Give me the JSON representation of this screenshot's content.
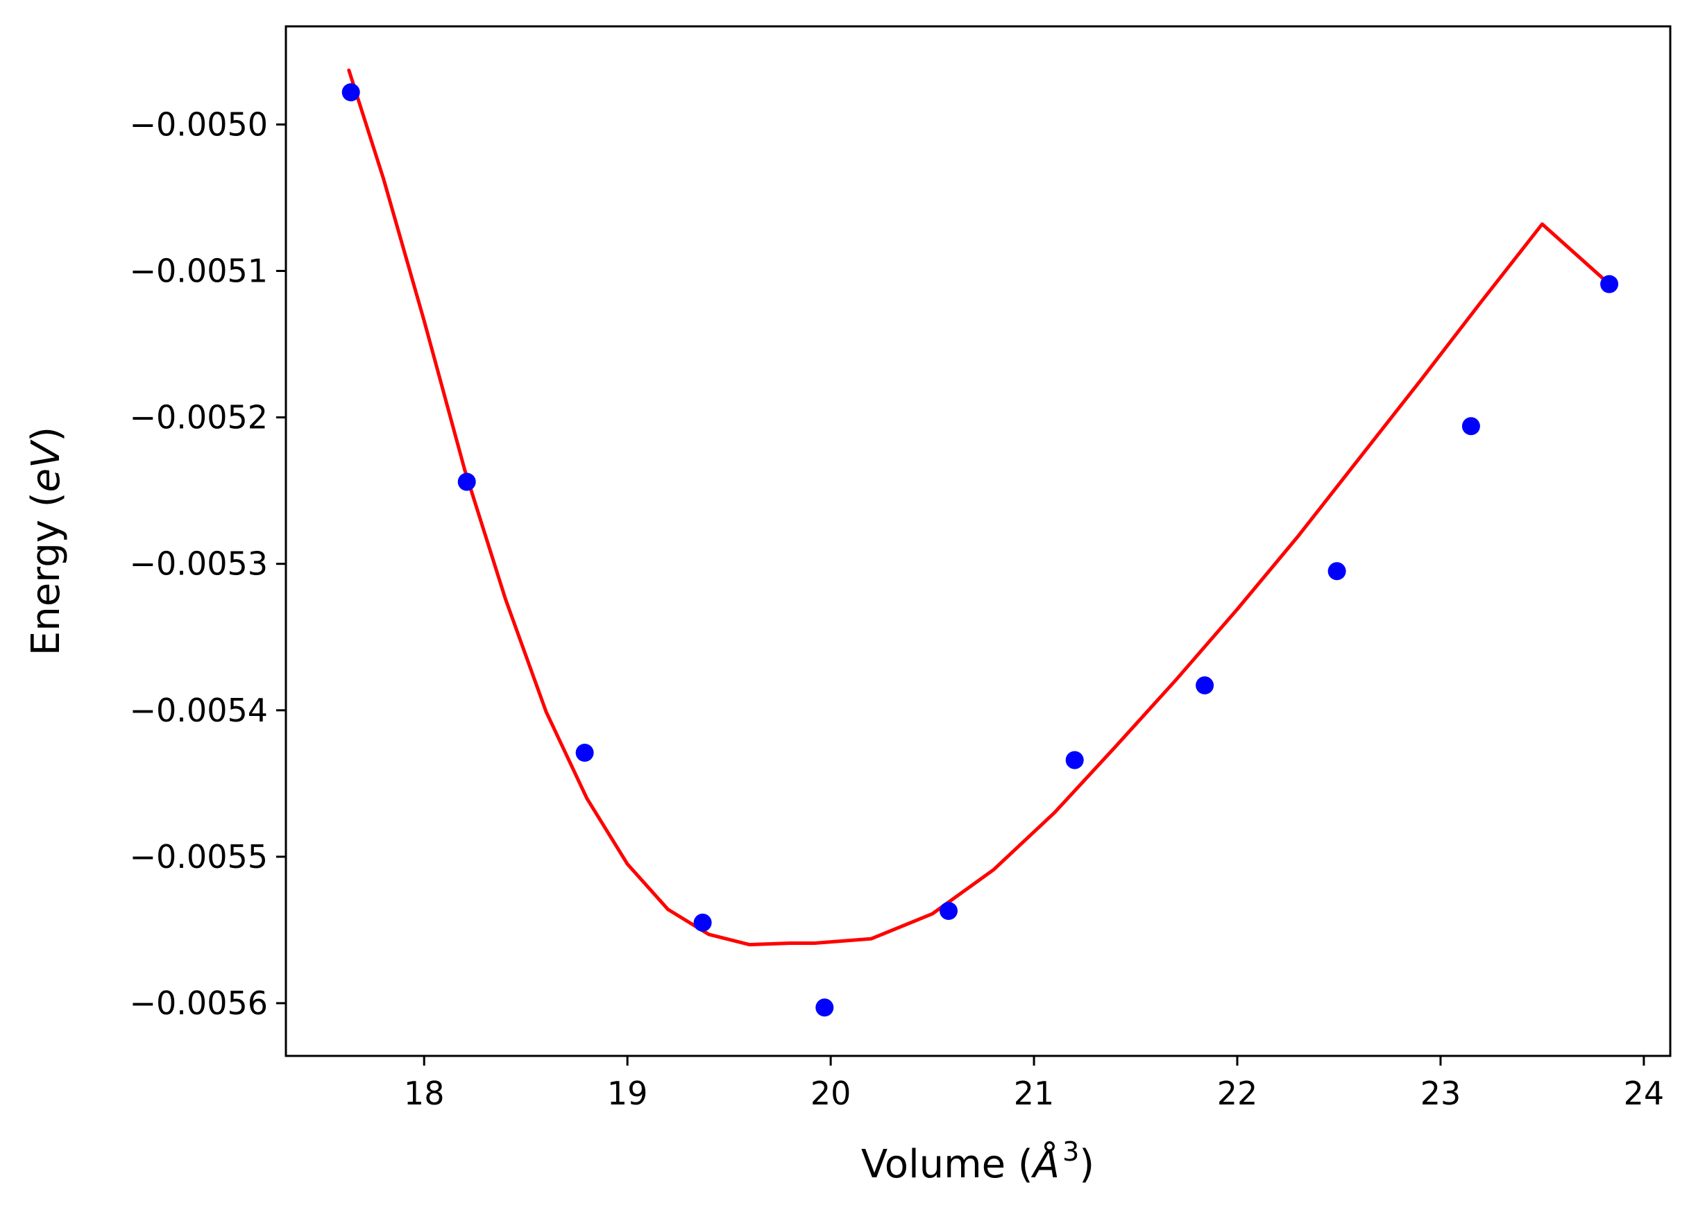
{
  "chart_data": {
    "type": "scatter",
    "xlabel": "Volume (Å³)",
    "xlabel_parts": {
      "prefix": "Volume (",
      "symbol": "Å",
      "superscript": "3",
      "suffix": ")"
    },
    "ylabel": "Energy (eV)",
    "ylabel_parts": {
      "prefix": "Energy (",
      "italic": "eV",
      "suffix": ")"
    },
    "xlim": [
      17.32,
      24.13
    ],
    "ylim": [
      -0.005636,
      -0.004933
    ],
    "grid": false,
    "legend": "none",
    "x_ticks": [
      18,
      19,
      20,
      21,
      22,
      23,
      24
    ],
    "x_tick_labels": [
      "18",
      "19",
      "20",
      "21",
      "22",
      "23",
      "24"
    ],
    "y_ticks": [
      -0.005,
      -0.0051,
      -0.0052,
      -0.0053,
      -0.0054,
      -0.0055,
      -0.0056
    ],
    "y_tick_labels": [
      "−0.0050",
      "−0.0051",
      "−0.0052",
      "−0.0053",
      "−0.0054",
      "−0.0055",
      "−0.0056"
    ],
    "series": [
      {
        "kind": "points",
        "color": "#0000ff",
        "x": [
          17.64,
          18.21,
          18.79,
          19.37,
          19.97,
          20.58,
          21.2,
          21.84,
          22.49,
          23.15,
          23.83
        ],
        "y": [
          -0.004978,
          -0.005244,
          -0.005429,
          -0.005545,
          -0.005603,
          -0.005537,
          -0.005434,
          -0.005383,
          -0.005305,
          -0.005206,
          -0.005109
        ]
      },
      {
        "kind": "fit-line",
        "color": "#ff0000",
        "x": [
          17.63,
          17.8,
          18.0,
          18.2,
          18.4,
          18.6,
          18.8,
          19.0,
          19.2,
          19.4,
          19.6,
          19.8,
          19.92,
          20.2,
          20.5,
          20.8,
          21.1,
          21.4,
          21.7,
          22.0,
          22.3,
          22.6,
          22.9,
          23.2,
          23.5,
          23.83
        ],
        "y": [
          -0.004963,
          -0.005037,
          -0.005134,
          -0.005236,
          -0.005324,
          -0.005401,
          -0.00546,
          -0.005505,
          -0.005536,
          -0.005553,
          -0.00556,
          -0.005559,
          -0.005559,
          -0.005556,
          -0.005539,
          -0.005509,
          -0.00547,
          -0.005425,
          -0.005379,
          -0.005331,
          -0.005281,
          -0.005228,
          -0.005175,
          -0.005121,
          -0.005068,
          -0.005109
        ]
      }
    ]
  }
}
